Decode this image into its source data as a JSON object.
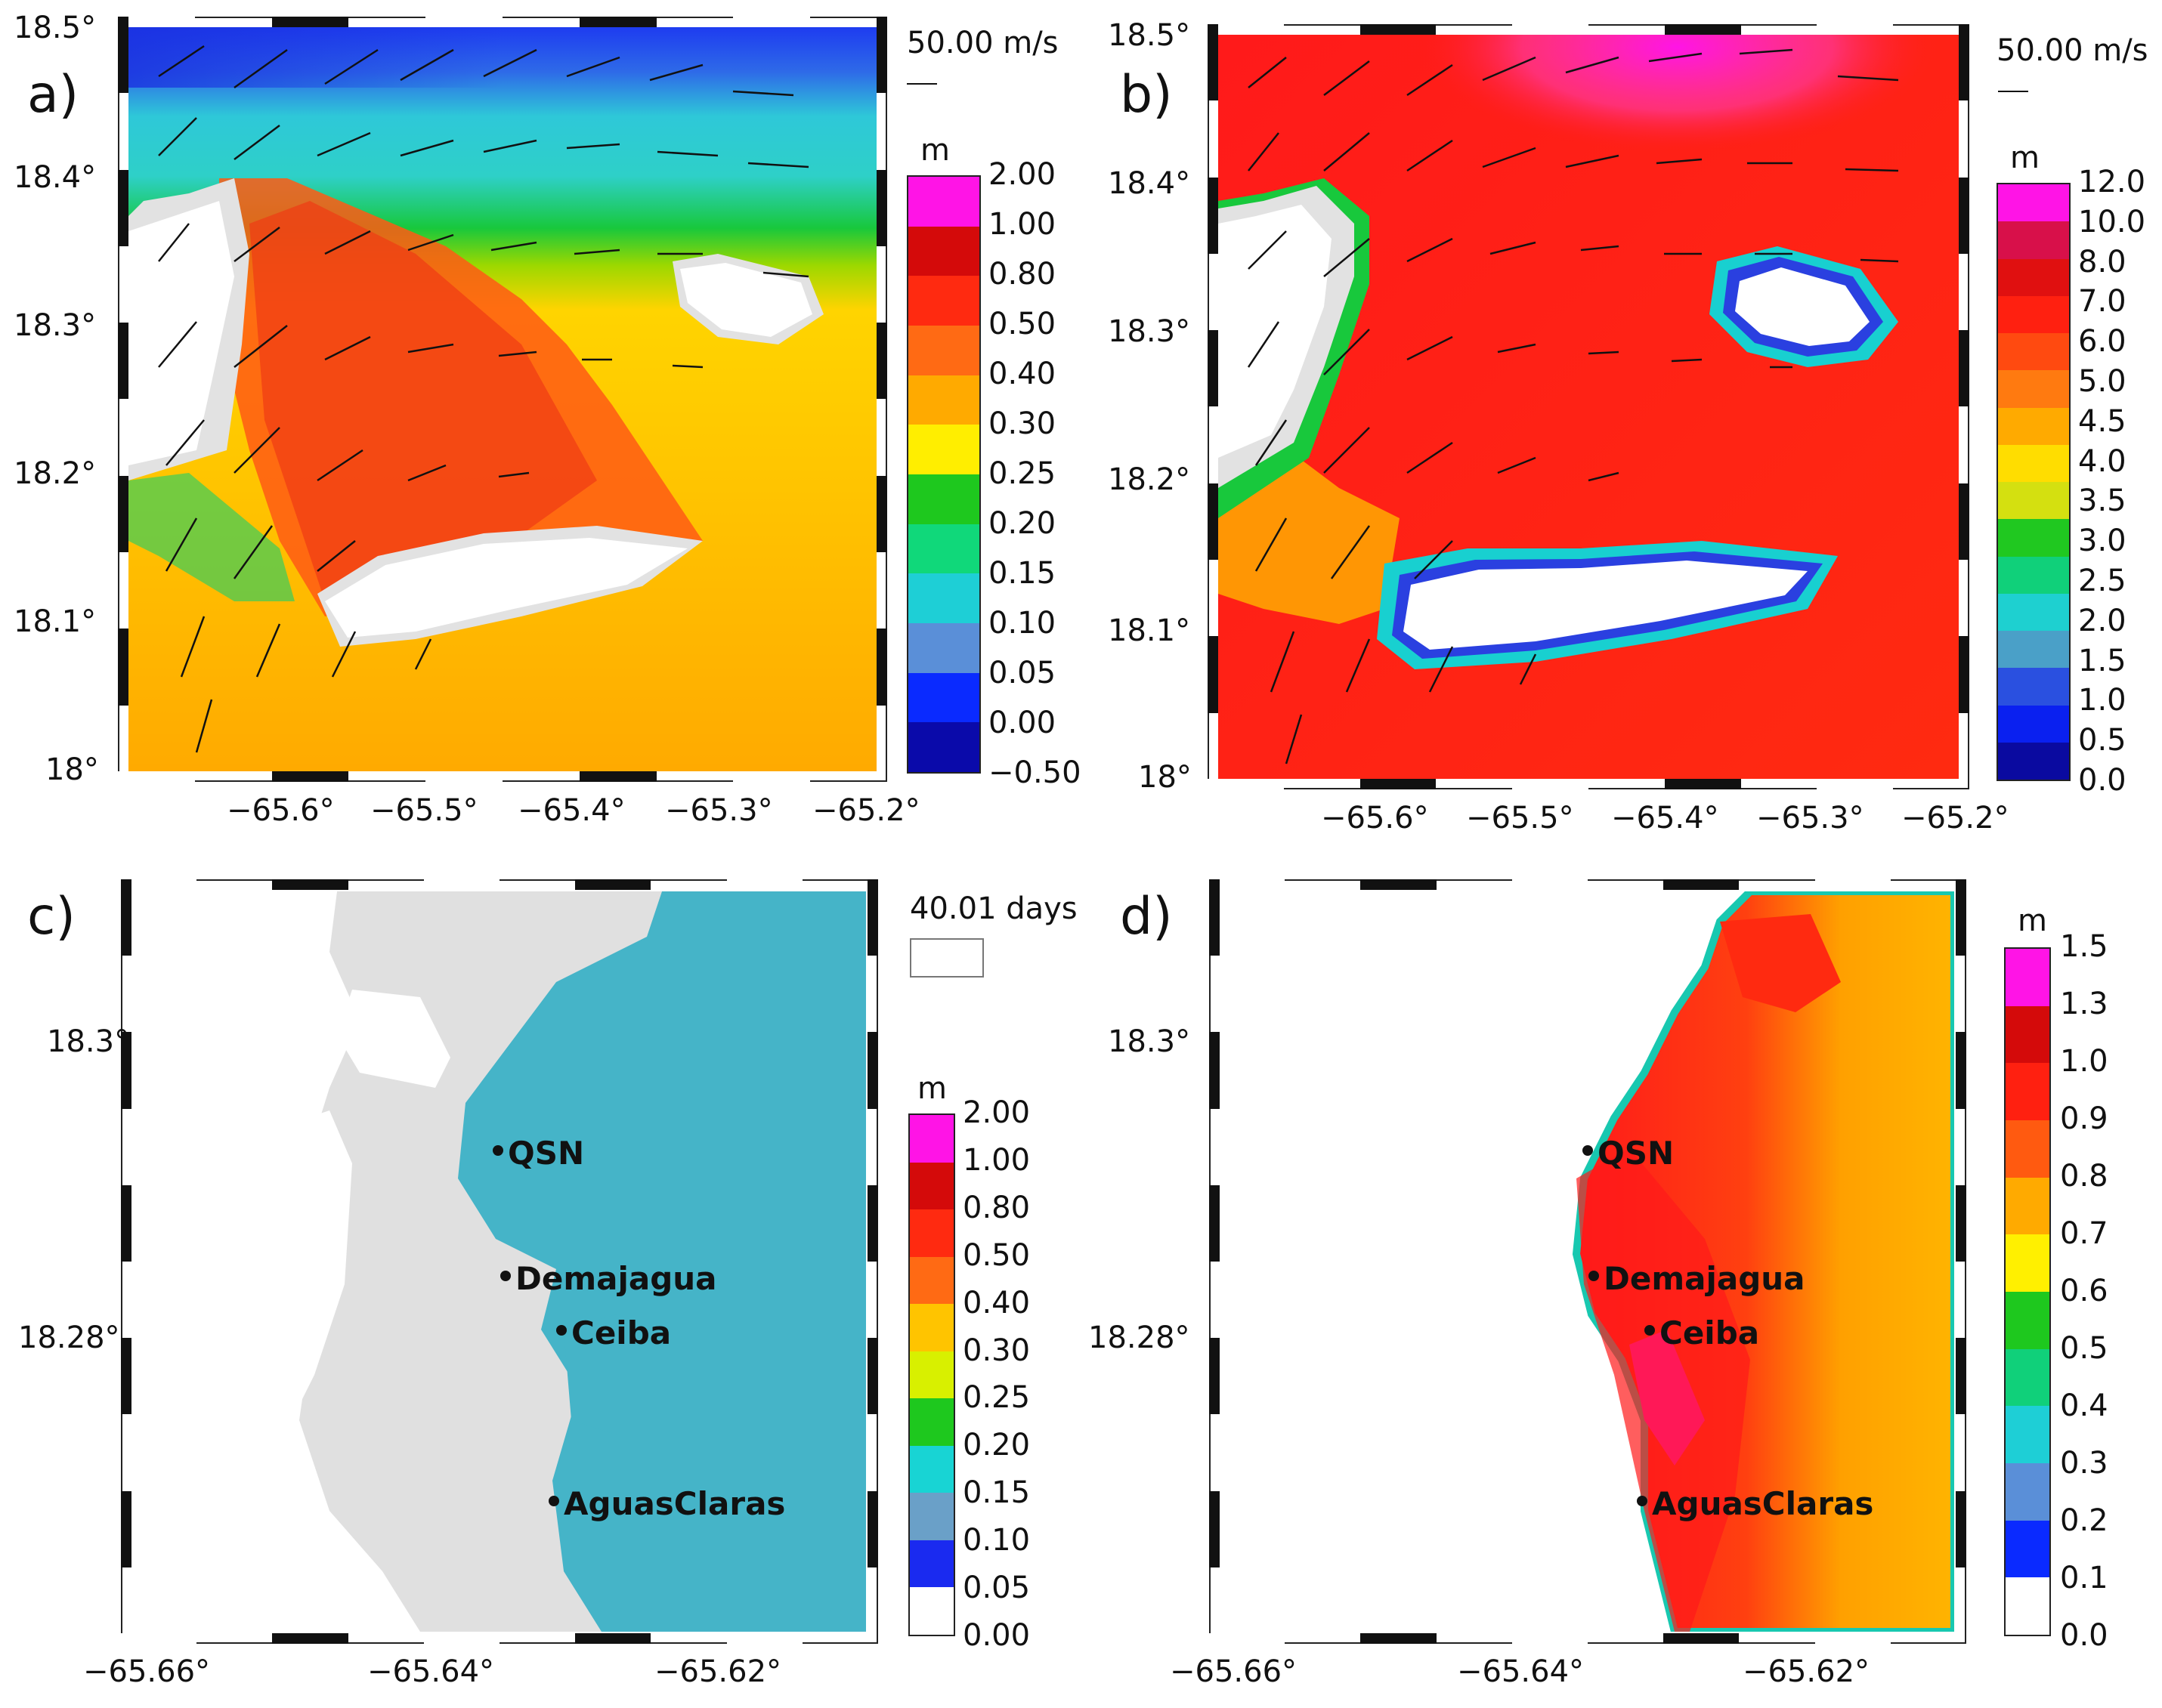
{
  "panels": {
    "a": {
      "letter": "a)",
      "y_ticks": [
        "18.5°",
        "18.4°",
        "18.3°",
        "18.2°",
        "18.1°",
        "18°"
      ],
      "x_ticks": [
        "−65.6°",
        "−65.5°",
        "−65.4°",
        "−65.3°",
        "−65.2°"
      ],
      "vector_scale": "50.00 m/s",
      "colorbar_unit": "m",
      "colorbar_labels": [
        "2.00",
        "1.00",
        "0.80",
        "0.50",
        "0.40",
        "0.30",
        "0.25",
        "0.20",
        "0.15",
        "0.10",
        "0.05",
        "0.00",
        "−0.50"
      ],
      "colorbar_colors": [
        "#ff14e6",
        "#d40a0a",
        "#ff2a10",
        "#ff6a14",
        "#ffaa00",
        "#ffee00",
        "#1ec81e",
        "#10d87a",
        "#1ecfd6",
        "#5a8fd8",
        "#0a2aff",
        "#0a0aaa"
      ]
    },
    "b": {
      "letter": "b)",
      "y_ticks": [
        "18.5°",
        "18.4°",
        "18.3°",
        "18.2°",
        "18.1°",
        "18°"
      ],
      "x_ticks": [
        "−65.6°",
        "−65.5°",
        "−65.4°",
        "−65.3°",
        "−65.2°"
      ],
      "vector_scale": "50.00 m/s",
      "colorbar_unit": "m",
      "colorbar_labels": [
        "12.0",
        "10.0",
        "8.0",
        "7.0",
        "6.0",
        "5.0",
        "4.5",
        "4.0",
        "3.5",
        "3.0",
        "2.5",
        "2.0",
        "1.5",
        "1.0",
        "0.5",
        "0.0"
      ],
      "colorbar_colors": [
        "#ff14e6",
        "#d8104a",
        "#e01010",
        "#ff2010",
        "#ff4a10",
        "#ff7a10",
        "#ffaa00",
        "#ffdd00",
        "#d4e010",
        "#20c820",
        "#10d07a",
        "#1ed0d0",
        "#4aa0c8",
        "#2a50e0",
        "#0a20f0",
        "#0a0aa0"
      ]
    },
    "c": {
      "letter": "c)",
      "y_ticks": [
        "18.3°",
        "18.28°"
      ],
      "x_ticks": [
        "−65.66°",
        "−65.64°",
        "−65.62°"
      ],
      "days_label": "40.01 days",
      "colorbar_unit": "m",
      "colorbar_labels": [
        "2.00",
        "1.00",
        "0.80",
        "0.50",
        "0.40",
        "0.30",
        "0.25",
        "0.20",
        "0.15",
        "0.10",
        "0.05",
        "0.00"
      ],
      "colorbar_colors": [
        "#ff14e6",
        "#d40a0a",
        "#ff2a10",
        "#ff6a14",
        "#ffc400",
        "#d8f000",
        "#1ec81e",
        "#18d4d4",
        "#6aa0c8",
        "#1a2af0",
        "#ffffff"
      ],
      "stations": [
        "QSN",
        "Demajagua",
        "Ceiba",
        "AguasClaras"
      ]
    },
    "d": {
      "letter": "d)",
      "y_ticks": [
        "18.3°",
        "18.28°"
      ],
      "x_ticks": [
        "−65.66°",
        "−65.64°",
        "−65.62°"
      ],
      "colorbar_unit": "m",
      "colorbar_labels": [
        "1.5",
        "1.3",
        "1.0",
        "0.9",
        "0.8",
        "0.7",
        "0.6",
        "0.5",
        "0.4",
        "0.3",
        "0.2",
        "0.1",
        "0.0"
      ],
      "colorbar_colors": [
        "#ff14e6",
        "#d40a0a",
        "#ff2010",
        "#ff5a10",
        "#ffaa00",
        "#fff000",
        "#1ec81e",
        "#10d07a",
        "#1ecfd6",
        "#5a8fd8",
        "#0a2aff",
        "#ffffff"
      ],
      "stations": [
        "QSN",
        "Demajagua",
        "Ceiba",
        "AguasClaras"
      ]
    }
  }
}
